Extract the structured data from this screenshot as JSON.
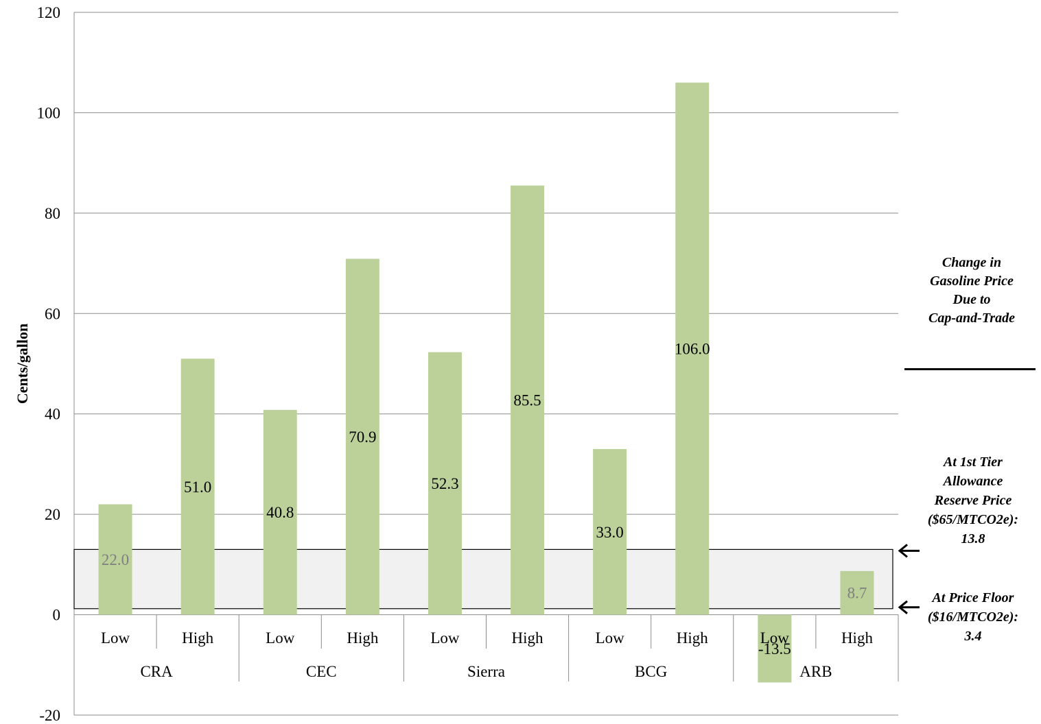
{
  "chart_data": {
    "type": "bar",
    "ylabel": "Cents/gallon",
    "ylim": [
      -20,
      120
    ],
    "yticks": [
      -20,
      0,
      20,
      40,
      60,
      80,
      100,
      120
    ],
    "grid": true,
    "groups": [
      {
        "name": "CRA",
        "categories": [
          "Low",
          "High"
        ],
        "values": [
          22.0,
          51.0
        ],
        "labels": [
          "22.0",
          "51.0"
        ]
      },
      {
        "name": "CEC",
        "categories": [
          "Low",
          "High"
        ],
        "values": [
          40.8,
          70.9
        ],
        "labels": [
          "40.8",
          "70.9"
        ]
      },
      {
        "name": "Sierra",
        "categories": [
          "Low",
          "High"
        ],
        "values": [
          52.3,
          85.5
        ],
        "labels": [
          "52.3",
          "85.5"
        ]
      },
      {
        "name": "BCG",
        "categories": [
          "Low",
          "High"
        ],
        "values": [
          33.0,
          106.0
        ],
        "labels": [
          "33.0",
          "106.0"
        ]
      },
      {
        "name": "ARB",
        "categories": [
          "Low",
          "High"
        ],
        "values": [
          -13.5,
          8.7
        ],
        "labels": [
          "-13.5",
          "8.7"
        ]
      }
    ],
    "band": {
      "from": 1.2,
      "to": 13.0
    },
    "bar_color": "#bcd19a",
    "band_fill": "#e5e5e5",
    "label_color_inside_band": "#7f7f7f",
    "label_color": "#000000"
  },
  "annotations": {
    "title_lines": [
      "Change in",
      "Gasoline Price",
      "Due to",
      "Cap-and-Trade"
    ],
    "reserve_lines": [
      "At 1st Tier",
      "Allowance",
      "Reserve Price",
      "($65/MTCO2e):",
      "13.8"
    ],
    "floor_lines": [
      "At Price Floor",
      "($16/MTCO2e):",
      "3.4"
    ]
  }
}
